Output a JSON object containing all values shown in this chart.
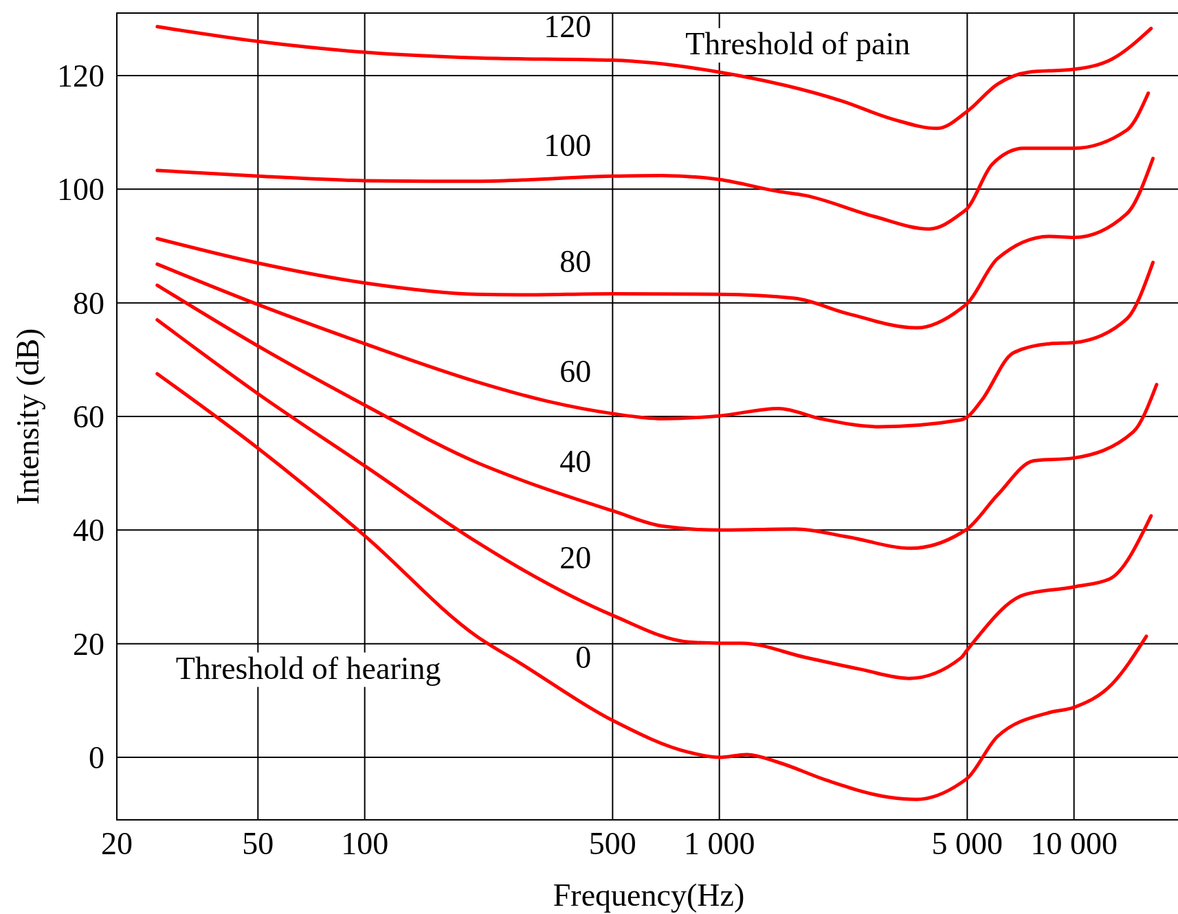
{
  "chart_data": {
    "type": "line",
    "xlabel": "Frequency(Hz)",
    "ylabel": "Intensity (dB)",
    "log": "x",
    "grid": true,
    "line_style": "solid",
    "marker": "none",
    "xlim": [
      20,
      20000
    ],
    "xticks": [
      20,
      50,
      100,
      500,
      {
        "value": 1000,
        "label": "1 000"
      },
      {
        "value": 5000,
        "label": "5 000"
      },
      {
        "value": 10000,
        "label": "10 000"
      }
    ],
    "ylim": [
      -11,
      131
    ],
    "yticks": [
      0,
      20,
      40,
      60,
      80,
      100,
      120
    ],
    "series": [
      {
        "color": "#ff0000",
        "x": [
          26,
          50,
          100,
          207,
          274,
          500,
          820,
          1000,
          1195,
          1470,
          2000,
          3000,
          3600,
          4800,
          5000,
          6090,
          8530,
          10000,
          12800,
          16000
        ],
        "values": [
          67.5,
          54.4,
          39,
          21.3,
          16.6,
          6.5,
          0.9,
          0,
          0.5,
          -0.9,
          -4,
          -7,
          -7.4,
          -4.5,
          -3.7,
          3.7,
          7.9,
          8.8,
          12.9,
          21.3
        ]
      },
      {
        "color": "#ff0000",
        "x": [
          26,
          50,
          100,
          207,
          274,
          500,
          820,
          1000,
          1155,
          1745,
          2500,
          3430,
          4800,
          5000,
          7220,
          10000,
          12600,
          16500
        ],
        "values": [
          77,
          64,
          51.3,
          37.9,
          33.3,
          25,
          20.3,
          20.1,
          20.1,
          17.6,
          15.5,
          13.9,
          17.5,
          18.9,
          28.6,
          30,
          31.4,
          42.5
        ]
      },
      {
        "color": "#ff0000",
        "x": [
          26,
          50,
          100,
          207,
          274,
          500,
          690,
          1000,
          1630,
          2300,
          3470,
          4800,
          5000,
          6090,
          7700,
          10000,
          14700,
          17100
        ],
        "values": [
          83.1,
          72.4,
          62,
          51.9,
          48.9,
          43.4,
          40.7,
          40,
          40.2,
          38.8,
          36.8,
          39.5,
          40.2,
          46.2,
          52.2,
          52.7,
          57.3,
          65.6
        ]
      },
      {
        "color": "#ff0000",
        "x": [
          26,
          50,
          100,
          207,
          326,
          500,
          690,
          1000,
          1470,
          1930,
          2820,
          4800,
          5000,
          5500,
          6740,
          8530,
          10000,
          14100,
          16700
        ],
        "values": [
          86.8,
          79.7,
          72.8,
          66.1,
          62.7,
          60.5,
          59.6,
          60.1,
          61.4,
          59.6,
          58.2,
          59.4,
          59.9,
          62.9,
          71.2,
          72.8,
          73,
          77.2,
          87.1
        ]
      },
      {
        "color": "#ff0000",
        "x": [
          26,
          50,
          100,
          207,
          274,
          500,
          1000,
          1630,
          2300,
          3600,
          4800,
          5000,
          6090,
          8530,
          10000,
          14100,
          16700
        ],
        "values": [
          91.3,
          87,
          83.5,
          81.5,
          81.4,
          81.6,
          81.5,
          80.8,
          78.1,
          75.6,
          79,
          79.9,
          87.8,
          91.7,
          91.5,
          95.7,
          105.4
        ]
      },
      {
        "color": "#ff0000",
        "x": [
          26,
          50,
          100,
          150,
          207,
          500,
          690,
          1000,
          1470,
          1745,
          2730,
          3900,
          4800,
          5000,
          5880,
          7220,
          10000,
          14100,
          16200
        ],
        "values": [
          103.3,
          102.3,
          101.5,
          101.4,
          101.4,
          102.3,
          102.4,
          101.7,
          99.6,
          98.9,
          95.2,
          93,
          95.7,
          96.6,
          104.4,
          107.2,
          107.2,
          110.4,
          116.9
        ]
      },
      {
        "color": "#ff0000",
        "x": [
          26,
          50,
          100,
          207,
          500,
          1000,
          2220,
          3090,
          4120,
          5000,
          6090,
          7460,
          10000,
          12800,
          16500
        ],
        "values": [
          128.6,
          126,
          124.1,
          123.1,
          122.7,
          120.6,
          115.5,
          112.3,
          110.7,
          113.7,
          118.5,
          120.6,
          121.1,
          122.9,
          128.3
        ]
      }
    ],
    "annotations": [
      "0",
      "20",
      "40",
      "60",
      "80",
      "100",
      "120",
      "Threshold of pain",
      "Threshold of hearing"
    ]
  }
}
